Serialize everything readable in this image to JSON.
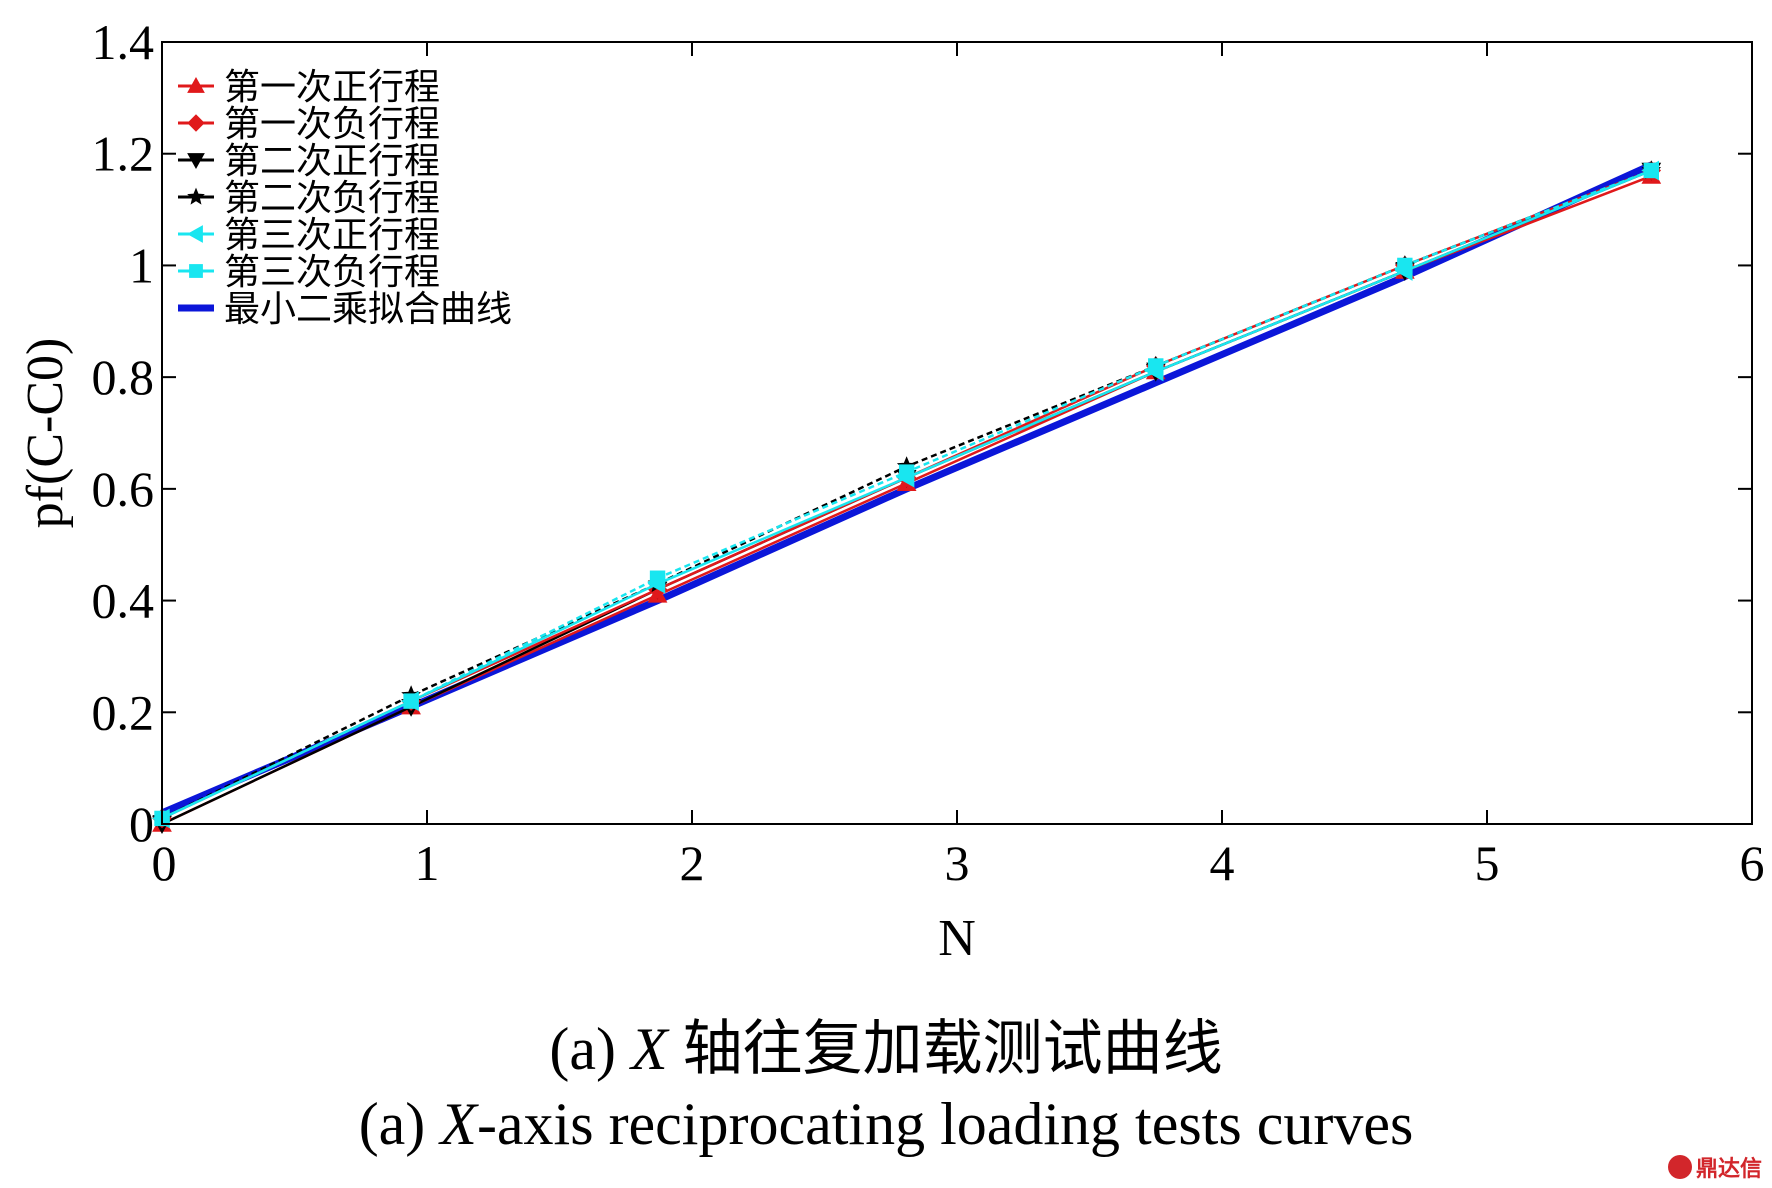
{
  "chart_data": {
    "type": "line",
    "xlabel": "N",
    "ylabel": "pf(C-C0)",
    "xlim": [
      0,
      6
    ],
    "ylim": [
      0,
      1.4
    ],
    "xticks": [
      "0",
      "1",
      "2",
      "3",
      "4",
      "5",
      "6"
    ],
    "yticks": [
      "0",
      "0.2",
      "0.4",
      "0.6",
      "0.8",
      "1",
      "1.2",
      "1.4"
    ],
    "grid": false,
    "legend_position": "top-left",
    "x": [
      0,
      0.94,
      1.87,
      2.81,
      3.75,
      4.69,
      5.62
    ],
    "series": [
      {
        "name": "第一次正行程",
        "color": "#e0191b",
        "marker": "triangle",
        "values": [
          0.0,
          0.21,
          0.41,
          0.61,
          0.81,
          0.99,
          1.16
        ]
      },
      {
        "name": "第一次负行程",
        "color": "#e0191b",
        "marker": "diamond",
        "values": [
          0.01,
          0.22,
          0.42,
          0.62,
          0.82,
          1.0,
          1.17
        ]
      },
      {
        "name": "第二次正行程",
        "color": "#000000",
        "marker": "triangle-down",
        "values": [
          0.0,
          0.21,
          0.42,
          0.62,
          0.81,
          0.99,
          1.17
        ]
      },
      {
        "name": "第二次负行程",
        "color": "#000000",
        "marker": "star",
        "values": [
          0.01,
          0.23,
          0.43,
          0.64,
          0.82,
          1.0,
          1.17
        ]
      },
      {
        "name": "第三次正行程",
        "color": "#19e6f0",
        "marker": "triangle-left",
        "values": [
          0.01,
          0.22,
          0.43,
          0.62,
          0.81,
          0.99,
          1.17
        ]
      },
      {
        "name": "第三次负行程",
        "color": "#19e6f0",
        "marker": "square",
        "values": [
          0.01,
          0.22,
          0.44,
          0.63,
          0.82,
          1.0,
          1.17
        ]
      },
      {
        "name": "最小二乘拟合曲线",
        "color": "#0b16d9",
        "marker": "none",
        "values": [
          0.02,
          0.21,
          0.4,
          0.6,
          0.79,
          0.98,
          1.18
        ]
      }
    ]
  },
  "caption": {
    "cn_prefix": "(a) ",
    "cn_var": "X",
    "cn_rest": " 轴往复加载测试曲线",
    "en_prefix": "(a) ",
    "en_var": "X",
    "en_rest": "-axis reciprocating loading tests curves"
  },
  "watermark": {
    "text": "鼎达信",
    "color": "#d2262b"
  }
}
